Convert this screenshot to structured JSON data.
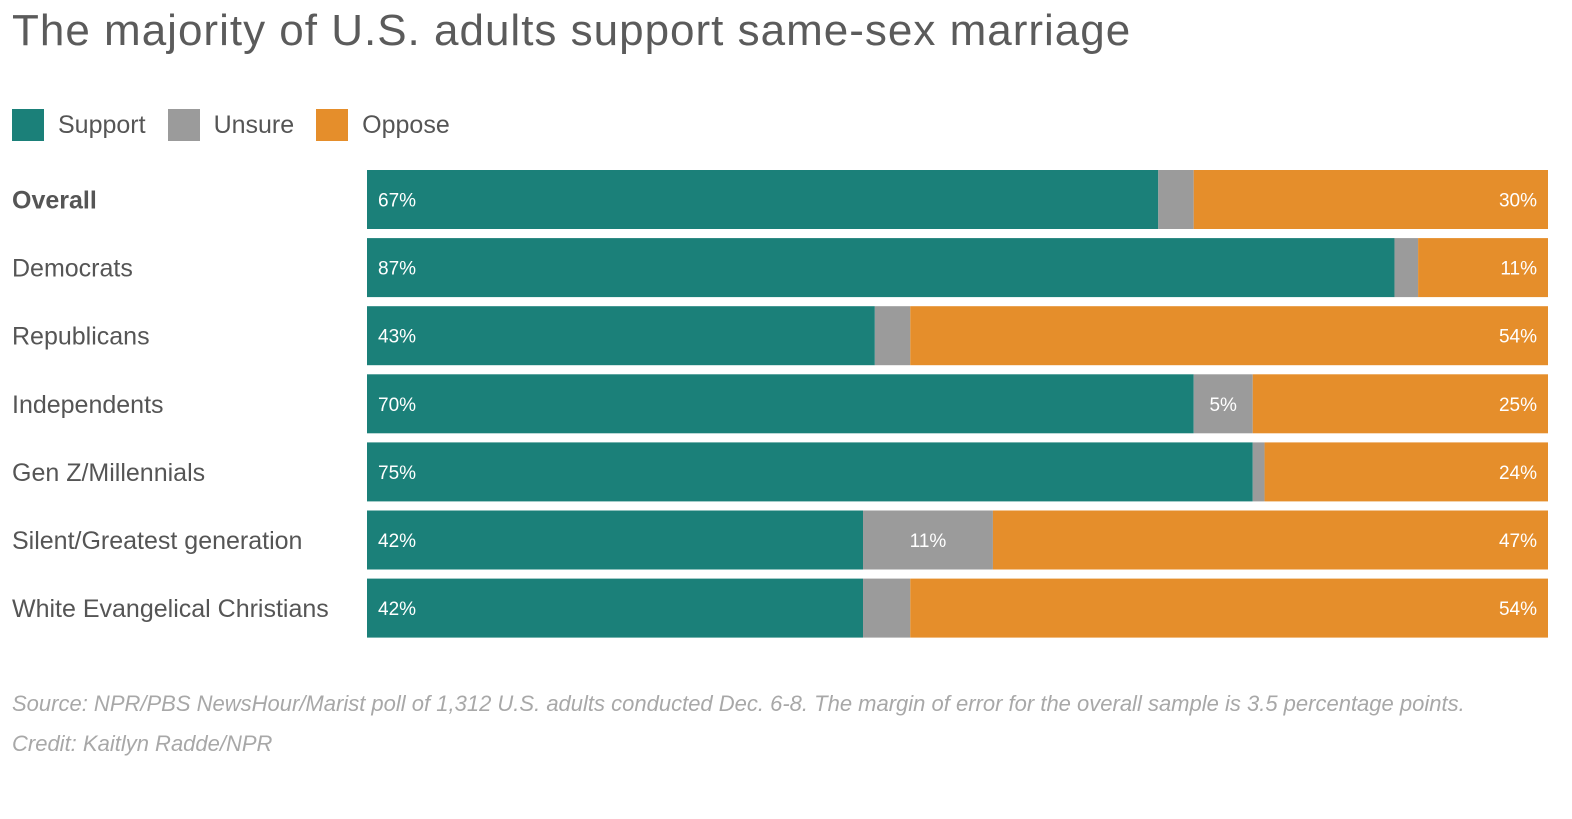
{
  "title": "The majority of U.S. adults support same-sex marriage",
  "legend": [
    {
      "label": "Support",
      "color": "#1b8079"
    },
    {
      "label": "Unsure",
      "color": "#9b9b9b"
    },
    {
      "label": "Oppose",
      "color": "#e58e2b"
    }
  ],
  "source": "Source: NPR/PBS NewsHour/Marist poll of 1,312 U.S. adults conducted Dec. 6-8. The margin of error for the overall sample is 3.5 percentage points.",
  "credit": "Credit: Kaitlyn Radde/NPR",
  "chart_data": {
    "type": "bar",
    "orientation": "horizontal",
    "stacked": true,
    "categories": [
      "Overall",
      "Democrats",
      "Republicans",
      "Independents",
      "Gen Z/Millennials",
      "Silent/Greatest generation",
      "White Evangelical Christians"
    ],
    "series": [
      {
        "name": "Support",
        "color": "#1b8079",
        "values": [
          67,
          87,
          43,
          70,
          75,
          42,
          42
        ],
        "labels": [
          "67%",
          "87%",
          "43%",
          "70%",
          "75%",
          "42%",
          "42%"
        ]
      },
      {
        "name": "Unsure",
        "color": "#9b9b9b",
        "values": [
          3,
          2,
          3,
          5,
          1,
          11,
          4
        ],
        "labels": [
          "",
          "",
          "",
          "5%",
          "",
          "11%",
          ""
        ]
      },
      {
        "name": "Oppose",
        "color": "#e58e2b",
        "values": [
          30,
          11,
          54,
          25,
          24,
          47,
          54
        ],
        "labels": [
          "30%",
          "11%",
          "54%",
          "25%",
          "24%",
          "47%",
          "54%"
        ]
      }
    ],
    "xlim": [
      0,
      100
    ],
    "legend_position": "top-left"
  }
}
